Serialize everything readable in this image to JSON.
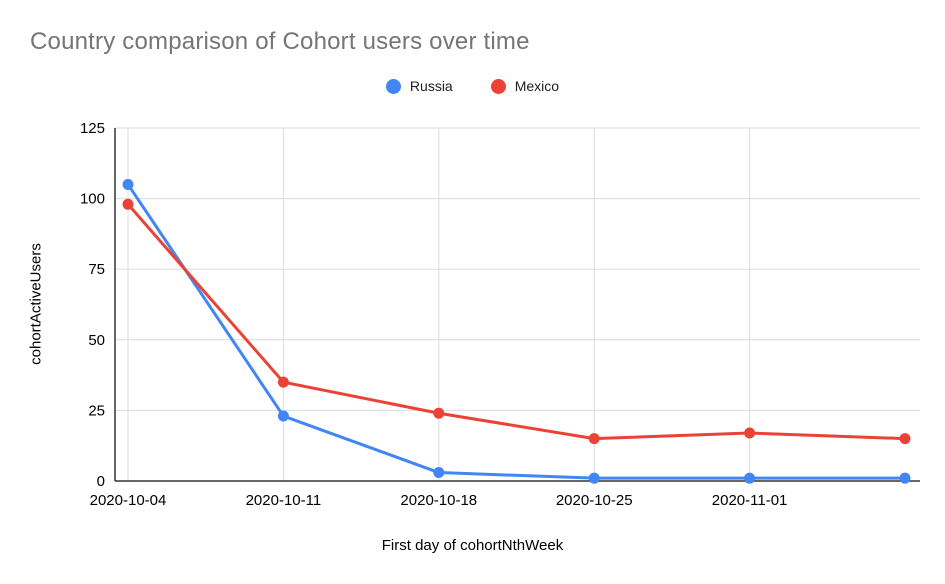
{
  "chart_data": {
    "type": "line",
    "title": "Country comparison of Cohort users over time",
    "xlabel": "First day of cohortNthWeek",
    "ylabel": "cohortActiveUsers",
    "x": [
      "2020-10-04",
      "2020-10-11",
      "2020-10-18",
      "2020-10-25",
      "2020-11-01",
      ""
    ],
    "series": [
      {
        "name": "Russia",
        "color": "#4285F4",
        "values": [
          105,
          23,
          3,
          1,
          1,
          1
        ]
      },
      {
        "name": "Mexico",
        "color": "#EA4335",
        "values": [
          98,
          35,
          24,
          15,
          17,
          15
        ]
      }
    ],
    "ylim": [
      0,
      125
    ],
    "yticks": [
      0,
      25,
      50,
      75,
      100,
      125
    ],
    "grid": true,
    "legend_position": "top",
    "colors": {
      "title_text": "#757575",
      "tick_text": "#000000",
      "gridline": "#dadce0",
      "axis_line": "#333333",
      "background": "#ffffff"
    }
  }
}
